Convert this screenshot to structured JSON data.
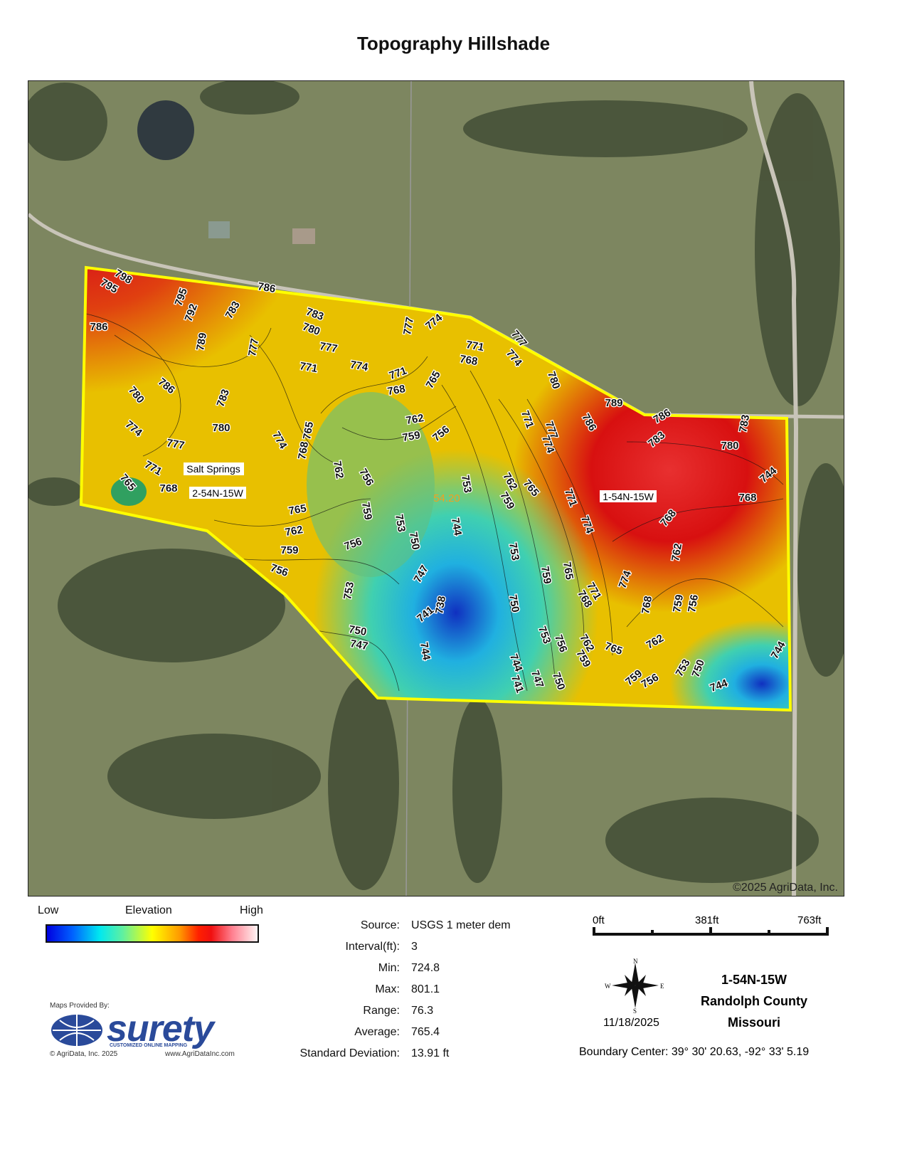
{
  "title": "Topography Hillshade",
  "map": {
    "copyright": "©2025 AgriData, Inc.",
    "place_labels": [
      "Salt Springs",
      "2-54N-15W",
      "1-54N-15W"
    ],
    "spot_elevation": "54.20",
    "boundary_color": "#ffff00",
    "contour_labels": [
      "798",
      "795",
      "786",
      "795",
      "792",
      "783",
      "783",
      "780",
      "786",
      "789",
      "777",
      "777",
      "774",
      "771",
      "774",
      "777",
      "771",
      "768",
      "777",
      "774",
      "771",
      "768",
      "765",
      "786",
      "783",
      "780",
      "780",
      "762",
      "759",
      "756",
      "774",
      "777",
      "774",
      "768",
      "765",
      "771",
      "768",
      "765",
      "762",
      "756",
      "753",
      "780",
      "789",
      "786",
      "783",
      "783",
      "786",
      "777",
      "780",
      "774",
      "771",
      "768",
      "762",
      "759",
      "765",
      "771",
      "774",
      "768",
      "765",
      "762",
      "759",
      "756",
      "756",
      "759",
      "753",
      "750",
      "744",
      "747",
      "753",
      "753",
      "759",
      "765",
      "768",
      "771",
      "774",
      "762",
      "768",
      "759",
      "756",
      "750",
      "741",
      "738",
      "753",
      "756",
      "762",
      "759",
      "765",
      "762",
      "750",
      "747",
      "744",
      "744",
      "741",
      "747",
      "750",
      "759",
      "756",
      "753",
      "750",
      "744",
      "744",
      "744"
    ]
  },
  "legend": {
    "low": "Low",
    "title": "Elevation",
    "high": "High",
    "colors": [
      "#0000e0",
      "#00e8f0",
      "#ffff00",
      "#ff2000",
      "#fff4f4"
    ]
  },
  "stats": [
    {
      "label": "Source:",
      "value": "USGS 1 meter dem"
    },
    {
      "label": "Interval(ft):",
      "value": "3"
    },
    {
      "label": "Min:",
      "value": "724.8"
    },
    {
      "label": "Max:",
      "value": "801.1"
    },
    {
      "label": "Range:",
      "value": "76.3"
    },
    {
      "label": "Average:",
      "value": "765.4"
    },
    {
      "label": "Standard Deviation:",
      "value": "13.91 ft"
    }
  ],
  "scale": {
    "labels": [
      "0ft",
      "381ft",
      "763ft"
    ]
  },
  "compass": {
    "n": "N",
    "s": "S",
    "e": "E",
    "w": "W"
  },
  "date": "11/18/2025",
  "location": {
    "section": "1-54N-15W",
    "county": "Randolph County",
    "state": "Missouri"
  },
  "boundary_center": "Boundary Center: 39° 30' 20.63,  -92° 33' 5.19",
  "logo": {
    "provided_by": "Maps Provided By:",
    "brand": "surety",
    "tagline": "CUSTOMIZED ONLINE MAPPING",
    "copyright": "© AgriData, Inc. 2025",
    "url": "www.AgriDataInc.com"
  }
}
